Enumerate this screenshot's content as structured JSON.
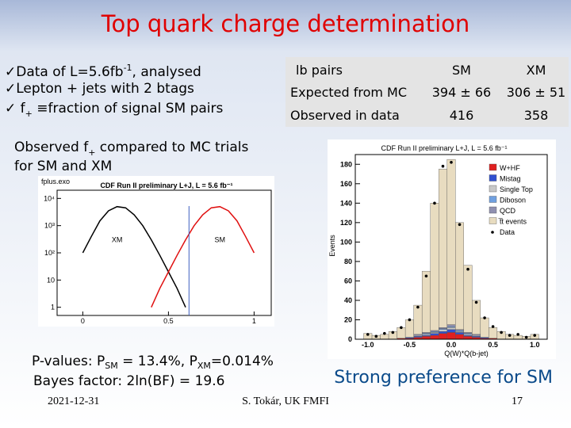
{
  "title": "Top quark charge determination",
  "bullets": [
    {
      "text": "Data of L=5.6fb",
      "sup": "-1",
      "rest": ", analysed"
    },
    {
      "text": "Lepton + jets with 2 btags"
    },
    {
      "text": "f",
      "sub": "+",
      "rest": " ≡fraction of signal SM pairs"
    }
  ],
  "table": {
    "header": [
      "lb pairs",
      "SM",
      "XM"
    ],
    "rows": [
      [
        "Expected from MC",
        "394 ± 66",
        "306 ± 51"
      ],
      [
        "Observed in data",
        "416",
        "358"
      ]
    ]
  },
  "caption": {
    "line1": "Observed f",
    "sub": "+",
    "line1_rest": " compared to MC trials",
    "line2": "for SM and XM"
  },
  "pvalues": {
    "text": "P-values: P",
    "sub1": "SM",
    "mid": " = 13.4%, P",
    "sub2": "XM",
    "rest": "=0.014%"
  },
  "bayes": "Bayes factor: 2ln(BF) = 19.6",
  "conclusion": "Strong preference for SM",
  "footer": {
    "date": "2021-12-31",
    "author": "S. Tokár, UK FMFI",
    "page": "17"
  },
  "charts": [
    {
      "type": "line",
      "label": "fplus.exo",
      "title": "CDF Run II preliminary L+J, L = 5.6 fb⁻¹",
      "log_y": true,
      "x": [
        0,
        0.05,
        0.1,
        0.15,
        0.2,
        0.25,
        0.3,
        0.35,
        0.4,
        0.45,
        0.5,
        0.55,
        0.6,
        0.65,
        0.7,
        0.75,
        0.8,
        0.85,
        0.9,
        0.95,
        1
      ],
      "series": [
        {
          "name": "XM",
          "color": "#000000",
          "values": [
            100,
            400,
            1500,
            3500,
            5000,
            4500,
            2500,
            1000,
            300,
            80,
            20,
            5,
            1,
            null,
            null,
            null,
            null,
            null,
            null,
            null,
            null
          ]
        },
        {
          "name": "SM",
          "color": "#e01010",
          "values": [
            null,
            null,
            null,
            null,
            null,
            null,
            null,
            null,
            1,
            5,
            20,
            80,
            300,
            1000,
            2500,
            4500,
            5000,
            3500,
            1500,
            400,
            100
          ]
        }
      ],
      "observed": 0.62,
      "xlim": [
        -0.15,
        1.1
      ],
      "ylim": [
        0.5,
        20000
      ],
      "xticks": [
        0,
        0.5,
        1
      ],
      "yticks": [
        1,
        10,
        {
          "value": 100,
          "label": "10²"
        },
        {
          "value": 1000,
          "label": "10³"
        },
        {
          "value": 10000,
          "label": "10⁴"
        }
      ]
    },
    {
      "type": "histogram",
      "title": "CDF Run II preliminary L+J, L = 5.6 fb⁻¹",
      "xlabel": "Q(W)*Q(b-jet)",
      "ylabel": "Events",
      "bins": [
        -1.05,
        -0.95,
        -0.85,
        -0.75,
        -0.65,
        -0.55,
        -0.45,
        -0.35,
        -0.25,
        -0.15,
        -0.05,
        0.05,
        0.15,
        0.25,
        0.35,
        0.45,
        0.55,
        0.65,
        0.75,
        0.85,
        0.95,
        1.05
      ],
      "series": [
        {
          "name": "W+HF",
          "color": "#e02020",
          "values": [
            0,
            0,
            0,
            0,
            1,
            1,
            2,
            3,
            4,
            6,
            7,
            5,
            3,
            2,
            1,
            1,
            0,
            0,
            0,
            0,
            0
          ]
        },
        {
          "name": "Mistag",
          "color": "#3050d0",
          "values": [
            0,
            0,
            0,
            0,
            0,
            1,
            1,
            1,
            2,
            2,
            3,
            2,
            1,
            1,
            1,
            0,
            0,
            0,
            0,
            0,
            0
          ]
        },
        {
          "name": "Single Top",
          "color": "#c8c8c8",
          "values": [
            0,
            0,
            0,
            0,
            0,
            0,
            1,
            1,
            1,
            2,
            2,
            1,
            1,
            1,
            0,
            0,
            0,
            0,
            0,
            0,
            0
          ]
        },
        {
          "name": "Diboson",
          "color": "#70a0e0",
          "values": [
            0,
            0,
            0,
            0,
            0,
            0,
            0,
            1,
            1,
            1,
            1,
            1,
            1,
            0,
            0,
            0,
            0,
            0,
            0,
            0,
            0
          ]
        },
        {
          "name": "QCD",
          "color": "#9090b0",
          "values": [
            0,
            0,
            0,
            0,
            0,
            0,
            1,
            1,
            1,
            1,
            2,
            1,
            1,
            1,
            0,
            0,
            0,
            0,
            0,
            0,
            0
          ]
        },
        {
          "name": "t̅t events",
          "color": "#e8dcc0",
          "values": [
            6,
            4,
            5,
            8,
            11,
            18,
            30,
            63,
            131,
            163,
            170,
            110,
            69,
            35,
            20,
            11,
            8,
            5,
            4,
            3,
            5
          ]
        },
        {
          "name": "Data",
          "color": "#000000",
          "points": true,
          "values": [
            5,
            3,
            6,
            7,
            12,
            20,
            33,
            65,
            140,
            178,
            182,
            118,
            72,
            38,
            22,
            13,
            7,
            4,
            5,
            2,
            4
          ]
        }
      ],
      "xlim": [
        -1.15,
        1.15
      ],
      "ylim": [
        0,
        190
      ],
      "xticks": [
        {
          "value": -1,
          "label": "-1.0"
        },
        -0.5,
        {
          "value": 0,
          "label": "0.0"
        },
        0.5,
        {
          "value": 1,
          "label": "1.0"
        }
      ],
      "yticks": [
        0,
        20,
        40,
        60,
        80,
        100,
        120,
        140,
        160,
        180
      ]
    }
  ]
}
